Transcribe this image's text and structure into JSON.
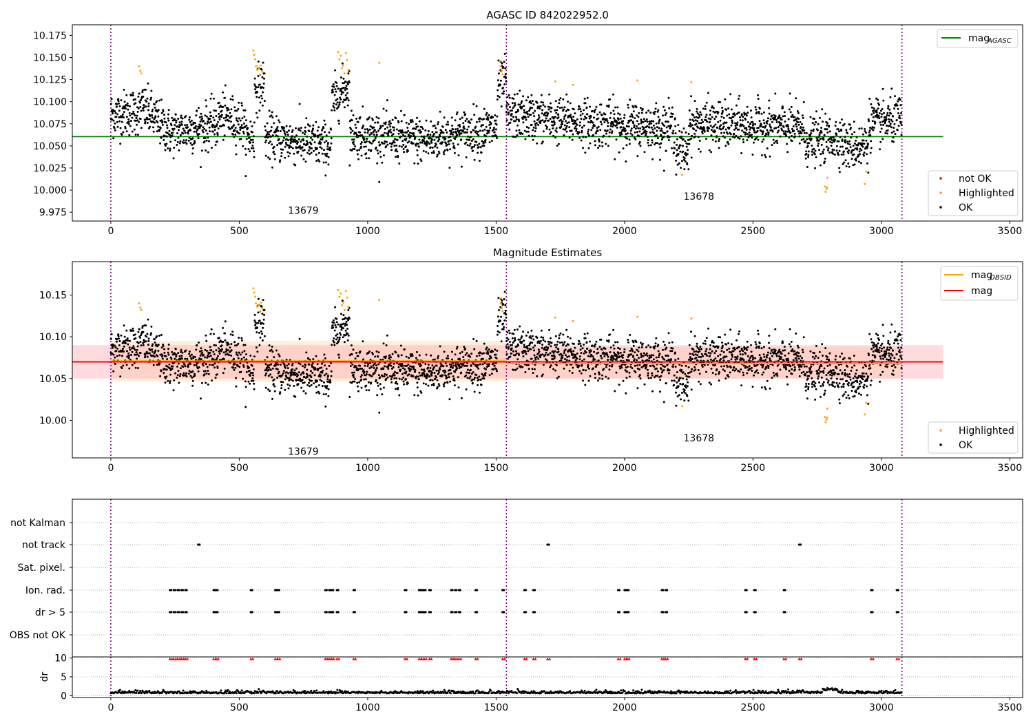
{
  "chart_data": [
    {
      "type": "scatter",
      "title": "AGASC ID 842022952.0",
      "xlim": [
        -150,
        3550
      ],
      "ylim": [
        9.965,
        10.187
      ],
      "xticks": [
        0,
        500,
        1000,
        1500,
        2000,
        2500,
        3000,
        3500
      ],
      "yticks": [
        9.975,
        10.0,
        10.025,
        10.05,
        10.075,
        10.1,
        10.125,
        10.15,
        10.175
      ],
      "ytick_labels": [
        "9.975",
        "10.000",
        "10.025",
        "10.050",
        "10.075",
        "10.100",
        "10.125",
        "10.150",
        "10.175"
      ],
      "obsid_boundaries": [
        0,
        1540,
        3080
      ],
      "obsid_labels": [
        {
          "label": "13679",
          "x": 770,
          "y": 9.977
        },
        {
          "label": "13678",
          "x": 2310,
          "y": 9.993
        }
      ],
      "lines": [
        {
          "name": "mag_AGASC",
          "value": 10.0605,
          "x_range": [
            -150,
            3240
          ],
          "color": "#008000"
        }
      ],
      "legend_lines": [
        {
          "text": "mag",
          "sub": "AGASC",
          "color": "#008000"
        }
      ],
      "legend_points": [
        {
          "text": "not OK",
          "color": "#ff0000"
        },
        {
          "text": "Highlighted",
          "color": "#ffa500"
        },
        {
          "text": "OK",
          "color": "#000000"
        }
      ],
      "series": [
        {
          "name": "OK",
          "color": "#000000",
          "n_points": 3080,
          "segments": [
            {
              "x": [
                0,
                120
              ],
              "y_from": 10.085,
              "y_to": 10.09
            },
            {
              "x": [
                120,
                230
              ],
              "y_from": 10.095,
              "y_to": 10.065
            },
            {
              "x": [
                230,
                420
              ],
              "y_from": 10.065,
              "y_to": 10.075
            },
            {
              "x": [
                420,
                520
              ],
              "y_from": 10.085,
              "y_to": 10.075
            },
            {
              "x": [
                520,
                560
              ],
              "y_from": 10.06,
              "y_to": 10.06
            },
            {
              "x": [
                560,
                600
              ],
              "y_from": 10.115,
              "y_to": 10.12
            },
            {
              "x": [
                600,
                860
              ],
              "y_from": 10.06,
              "y_to": 10.05
            },
            {
              "x": [
                860,
                930
              ],
              "y_from": 10.1,
              "y_to": 10.12
            },
            {
              "x": [
                930,
                1260
              ],
              "y_from": 10.065,
              "y_to": 10.055
            },
            {
              "x": [
                1260,
                1505
              ],
              "y_from": 10.06,
              "y_to": 10.07
            },
            {
              "x": [
                1505,
                1540
              ],
              "y_from": 10.115,
              "y_to": 10.125
            },
            {
              "x": [
                1540,
                1900
              ],
              "y_from": 10.085,
              "y_to": 10.075
            },
            {
              "x": [
                1900,
                2200
              ],
              "y_from": 10.075,
              "y_to": 10.07
            },
            {
              "x": [
                2200,
                2250
              ],
              "y_from": 10.045,
              "y_to": 10.045
            },
            {
              "x": [
                2250,
                2700
              ],
              "y_from": 10.075,
              "y_to": 10.07
            },
            {
              "x": [
                2700,
                2850
              ],
              "y_from": 10.055,
              "y_to": 10.06
            },
            {
              "x": [
                2850,
                2950
              ],
              "y_from": 10.05,
              "y_to": 10.05
            },
            {
              "x": [
                2950,
                3080
              ],
              "y_from": 10.075,
              "y_to": 10.08
            }
          ]
        },
        {
          "name": "Highlighted",
          "color": "#ffa500",
          "points": [
            [
              110,
              10.14
            ],
            [
              115,
              10.135
            ],
            [
              118,
              10.132
            ],
            [
              555,
              10.158
            ],
            [
              558,
              10.153
            ],
            [
              562,
              10.148
            ],
            [
              565,
              10.14
            ],
            [
              570,
              10.136
            ],
            [
              575,
              10.138
            ],
            [
              580,
              10.13
            ],
            [
              585,
              10.141
            ],
            [
              590,
              10.134
            ],
            [
              885,
              10.156
            ],
            [
              890,
              10.148
            ],
            [
              895,
              10.152
            ],
            [
              900,
              10.138
            ],
            [
              905,
              10.141
            ],
            [
              910,
              10.132
            ],
            [
              915,
              10.155
            ],
            [
              920,
              10.147
            ],
            [
              925,
              10.136
            ],
            [
              1045,
              10.144
            ],
            [
              1515,
              10.146
            ],
            [
              1518,
              10.14
            ],
            [
              1522,
              10.135
            ],
            [
              1525,
              10.131
            ],
            [
              1730,
              10.123
            ],
            [
              1800,
              10.119
            ],
            [
              2050,
              10.124
            ],
            [
              2225,
              10.017
            ],
            [
              2260,
              10.122
            ],
            [
              2780,
              10.004
            ],
            [
              2783,
              9.998
            ],
            [
              2786,
              10.001
            ],
            [
              2789,
              10.003
            ],
            [
              2790,
              10.014
            ],
            [
              2935,
              10.007
            ],
            [
              2940,
              10.021
            ]
          ]
        }
      ]
    },
    {
      "type": "scatter",
      "title": "Magnitude Estimates",
      "xlim": [
        -150,
        3550
      ],
      "ylim": [
        9.955,
        10.19
      ],
      "xticks": [
        0,
        500,
        1000,
        1500,
        2000,
        2500,
        3000,
        3500
      ],
      "yticks": [
        10.0,
        10.05,
        10.1,
        10.15
      ],
      "ytick_labels": [
        "10.00",
        "10.05",
        "10.10",
        "10.15"
      ],
      "obsid_boundaries": [
        0,
        1540,
        3080
      ],
      "obsid_labels": [
        {
          "label": "13679",
          "x": 770,
          "y": 9.963
        },
        {
          "label": "13678",
          "x": 2310,
          "y": 9.979
        }
      ],
      "lines": [
        {
          "name": "mag_OBSID_13679",
          "value": 10.071,
          "x_range": [
            0,
            1540
          ],
          "color": "#ffa500",
          "band": [
            10.047,
            10.095
          ]
        },
        {
          "name": "mag_OBSID_13678",
          "value": 10.068,
          "x_range": [
            1540,
            3080
          ],
          "color": "#ffa500",
          "band": [
            10.05,
            10.088
          ]
        },
        {
          "name": "mag",
          "value": 10.07,
          "x_range": [
            -150,
            3240
          ],
          "color": "#ff0000",
          "band": [
            10.05,
            10.09
          ]
        }
      ],
      "legend_lines": [
        {
          "text": "mag",
          "sub": "OBSID",
          "color": "#ffa500"
        },
        {
          "text": "mag",
          "sub": "",
          "color": "#ff0000"
        }
      ],
      "legend_points": [
        {
          "text": "Highlighted",
          "color": "#ffa500"
        },
        {
          "text": "OK",
          "color": "#000000"
        }
      ],
      "series_note": "same points as first panel"
    },
    {
      "type": "scatter",
      "title": "",
      "xlim": [
        -150,
        3550
      ],
      "category_labels": [
        "not Kalman",
        "not track",
        "Sat. pixel.",
        "Ion. rad.",
        "dr > 5",
        "OBS not OK"
      ],
      "flag_x": {
        "not track": [
          340,
          1700,
          2680
        ],
        "Ion. rad.": [
          230,
          245,
          260,
          275,
          290,
          400,
          410,
          545,
          640,
          650,
          835,
          850,
          860,
          880,
          945,
          1145,
          1200,
          1210,
          1220,
          1240,
          1325,
          1340,
          1355,
          1420,
          1525,
          1610,
          1645,
          1975,
          2000,
          2010,
          2145,
          2160,
          2470,
          2505,
          2620,
          2960,
          3060
        ],
        "dr > 5": [
          230,
          245,
          260,
          275,
          290,
          400,
          410,
          545,
          640,
          650,
          835,
          850,
          860,
          880,
          945,
          1145,
          1200,
          1210,
          1220,
          1240,
          1325,
          1340,
          1355,
          1420,
          1525,
          1610,
          1645,
          1975,
          2000,
          2010,
          2145,
          2160,
          2470,
          2505,
          2620,
          2960,
          3060
        ]
      },
      "obsid_boundaries": [
        0,
        1540,
        3080
      ]
    },
    {
      "type": "scatter",
      "ylabel": "dr",
      "xlim": [
        -150,
        3550
      ],
      "ylim": [
        -0.5,
        10.3
      ],
      "xticks": [
        0,
        500,
        1000,
        1500,
        2000,
        2500,
        3000,
        3500
      ],
      "yticks": [
        0,
        5,
        10
      ],
      "ytick_labels": [
        "0",
        "5",
        "10"
      ],
      "dr_baseline": 0.6,
      "dr_capped": [
        230,
        245,
        260,
        275,
        290,
        400,
        410,
        545,
        640,
        650,
        835,
        850,
        860,
        880,
        945,
        1145,
        1200,
        1210,
        1220,
        1240,
        1325,
        1340,
        1355,
        1420,
        1525,
        1610,
        1645,
        1700,
        1975,
        2000,
        2010,
        2145,
        2160,
        2470,
        2505,
        2620,
        2680,
        2960,
        3060
      ],
      "obsid_boundaries": [
        0,
        1540,
        3080
      ]
    }
  ]
}
